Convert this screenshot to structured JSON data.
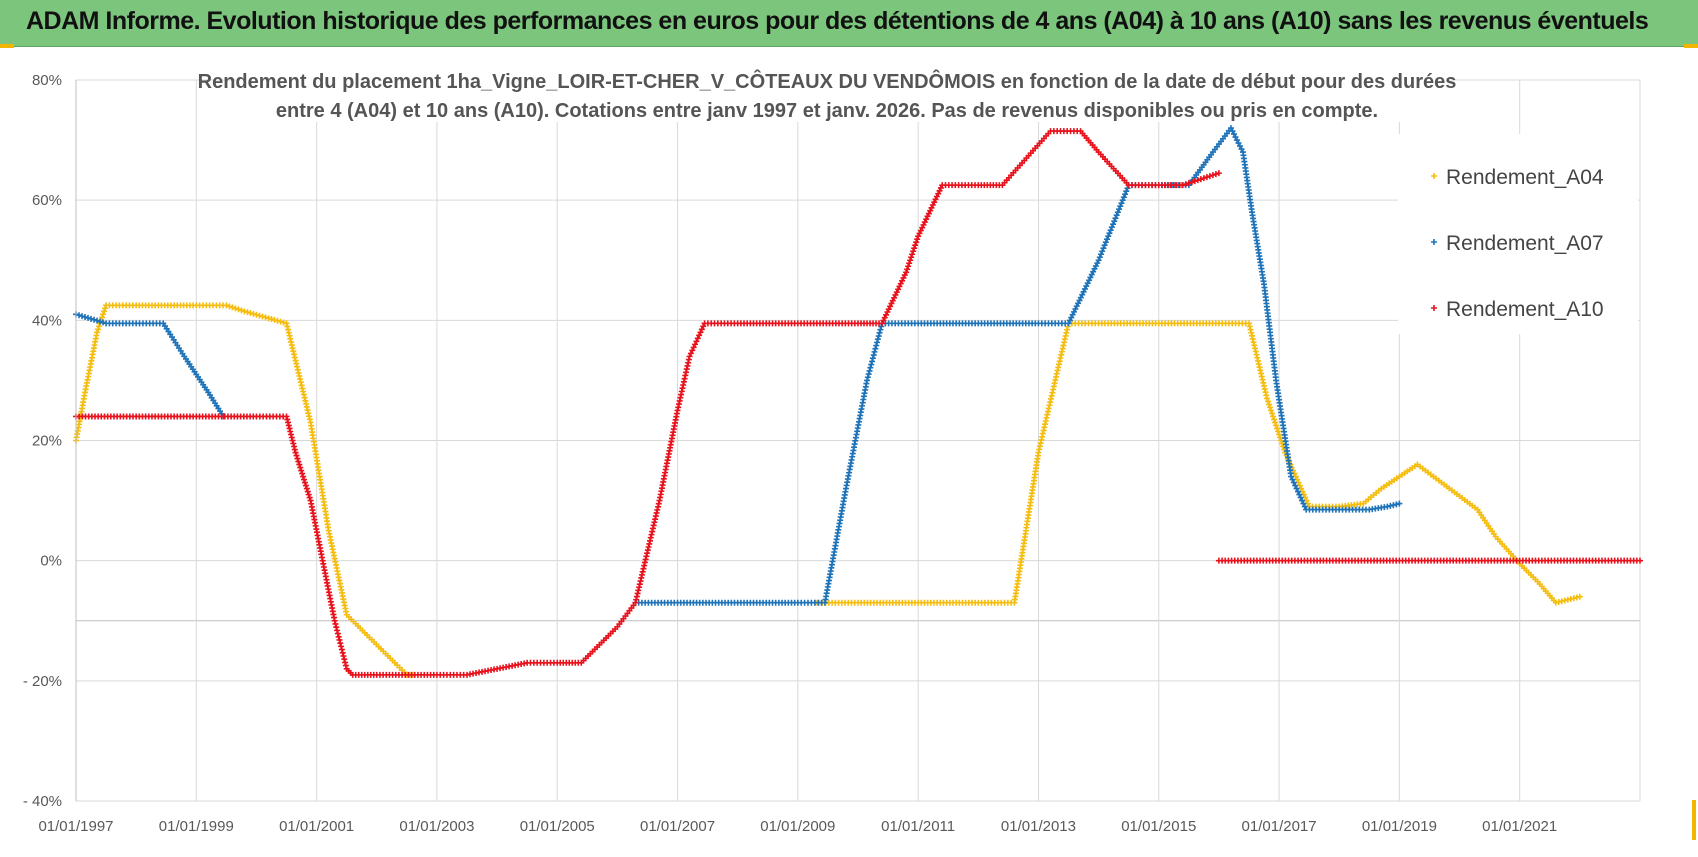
{
  "banner": {
    "title": "ADAM Informe. Evolution historique des performances en euros pour des détentions de 4 ans (A04) à 10 ans (A10) sans les revenus éventuels",
    "background": "#7cc57d",
    "accent": "#f2b600"
  },
  "chart_data": {
    "type": "scatter",
    "title_lines": [
      "Rendement du placement 1ha_Vigne_LOIR-ET-CHER_V_CÔTEAUX DU VENDÔMOIS en fonction de la date de début pour des durées",
      "entre 4 (A04) et 10 ans (A10).  Cotations entre janv 1997 et janv. 2026. Pas de revenus disponibles ou pris en compte."
    ],
    "marker": "+",
    "x_unit": "year",
    "xlim": [
      1997.0,
      2023.0
    ],
    "ylim": [
      -40,
      80
    ],
    "y_ticks": [
      80,
      60,
      40,
      20,
      0,
      -20,
      -40
    ],
    "y_tick_labels": [
      "80%",
      "60%",
      "40%",
      "20%",
      "0%",
      "- 20%",
      "- 40%"
    ],
    "x_tick_values": [
      1997,
      1999,
      2001,
      2003,
      2005,
      2007,
      2009,
      2011,
      2013,
      2015,
      2017,
      2019,
      2021
    ],
    "x_tick_labels": [
      "01/01/1997",
      "01/01/1999",
      "01/01/2001",
      "01/01/2003",
      "01/01/2005",
      "01/01/2007",
      "01/01/2009",
      "01/01/2011",
      "01/01/2013",
      "01/01/2015",
      "01/01/2017",
      "01/01/2019",
      "01/01/2021"
    ],
    "grid": true,
    "legend_position": "top-right",
    "series": [
      {
        "name": "Rendement_A04",
        "color": "#f5bd10",
        "points": [
          [
            1997.0,
            20
          ],
          [
            1997.15,
            28
          ],
          [
            1997.35,
            38
          ],
          [
            1997.5,
            42.5
          ],
          [
            1998.0,
            42.5
          ],
          [
            1999.0,
            42.5
          ],
          [
            1999.5,
            42.5
          ],
          [
            1999.8,
            41.5
          ],
          [
            2000.5,
            39.5
          ],
          [
            2000.9,
            23
          ],
          [
            2001.2,
            5
          ],
          [
            2001.5,
            -9
          ],
          [
            2001.8,
            -12
          ],
          [
            2002.3,
            -17
          ],
          [
            2002.5,
            -19
          ],
          [
            2002.6,
            -19
          ]
        ]
      },
      {
        "name": "Rendement_A04",
        "color": "#f5bd10",
        "points": [
          [
            2009.3,
            -7
          ],
          [
            2010.0,
            -7
          ],
          [
            2011.0,
            -7
          ],
          [
            2012.0,
            -7
          ],
          [
            2012.6,
            -7
          ],
          [
            2013.0,
            18
          ],
          [
            2013.5,
            39.5
          ],
          [
            2014.0,
            39.5
          ],
          [
            2015.0,
            39.5
          ],
          [
            2016.0,
            39.5
          ],
          [
            2016.5,
            39.5
          ],
          [
            2016.8,
            27
          ],
          [
            2017.1,
            18
          ],
          [
            2017.5,
            9
          ],
          [
            2018.0,
            9
          ],
          [
            2018.4,
            9.5
          ],
          [
            2018.7,
            12
          ],
          [
            2019.0,
            14
          ],
          [
            2019.3,
            16
          ],
          [
            2019.7,
            13
          ],
          [
            2020.3,
            8.5
          ],
          [
            2020.6,
            4
          ],
          [
            2021.0,
            -0.5
          ],
          [
            2021.3,
            -3.5
          ],
          [
            2021.6,
            -7
          ],
          [
            2022.0,
            -6
          ]
        ]
      },
      {
        "name": "Rendement_A07",
        "color": "#1f73b8",
        "points": [
          [
            1997.0,
            41
          ],
          [
            1997.5,
            39.5
          ],
          [
            1998.0,
            39.5
          ],
          [
            1998.45,
            39.5
          ],
          [
            1998.8,
            34
          ],
          [
            1999.2,
            28
          ],
          [
            1999.45,
            24
          ]
        ]
      },
      {
        "name": "Rendement_A07",
        "color": "#1f73b8",
        "points": [
          [
            2006.3,
            -7
          ],
          [
            2007.0,
            -7
          ],
          [
            2008.0,
            -7
          ],
          [
            2009.0,
            -7
          ],
          [
            2009.45,
            -7
          ],
          [
            2009.8,
            12
          ],
          [
            2010.15,
            30
          ],
          [
            2010.4,
            39.5
          ],
          [
            2011.0,
            39.5
          ],
          [
            2012.0,
            39.5
          ],
          [
            2013.0,
            39.5
          ],
          [
            2013.5,
            39.5
          ],
          [
            2014.0,
            50
          ],
          [
            2014.5,
            62.5
          ],
          [
            2015.0,
            62.5
          ],
          [
            2015.5,
            62.5
          ],
          [
            2015.9,
            68
          ],
          [
            2016.2,
            72
          ],
          [
            2016.4,
            68
          ],
          [
            2016.55,
            58
          ],
          [
            2016.75,
            46
          ],
          [
            2016.95,
            30
          ],
          [
            2017.2,
            14
          ],
          [
            2017.45,
            8.5
          ],
          [
            2018.0,
            8.5
          ],
          [
            2018.5,
            8.5
          ],
          [
            2018.8,
            9
          ],
          [
            2019.0,
            9.5
          ]
        ]
      },
      {
        "name": "Rendement_A10",
        "color": "#e8121d",
        "points": [
          [
            1997.0,
            24
          ],
          [
            1998.0,
            24
          ],
          [
            1999.0,
            24
          ],
          [
            2000.0,
            24
          ],
          [
            2000.5,
            24
          ],
          [
            2000.65,
            18
          ],
          [
            2000.9,
            10
          ],
          [
            2001.1,
            0
          ],
          [
            2001.3,
            -10
          ],
          [
            2001.5,
            -18
          ],
          [
            2001.6,
            -19
          ],
          [
            2002.0,
            -19
          ],
          [
            2003.0,
            -19
          ],
          [
            2003.5,
            -19
          ],
          [
            2004.0,
            -18
          ],
          [
            2004.5,
            -17
          ],
          [
            2005.0,
            -17
          ],
          [
            2005.4,
            -17
          ],
          [
            2006.0,
            -11
          ],
          [
            2006.3,
            -7
          ],
          [
            2006.7,
            10
          ],
          [
            2007.0,
            25
          ],
          [
            2007.2,
            34
          ],
          [
            2007.45,
            39.5
          ],
          [
            2008.0,
            39.5
          ],
          [
            2009.0,
            39.5
          ],
          [
            2010.0,
            39.5
          ],
          [
            2010.4,
            39.5
          ],
          [
            2010.8,
            48
          ],
          [
            2011.0,
            54
          ],
          [
            2011.4,
            62.5
          ],
          [
            2012.0,
            62.5
          ],
          [
            2012.4,
            62.5
          ],
          [
            2012.8,
            67
          ],
          [
            2013.2,
            71.5
          ],
          [
            2013.7,
            71.5
          ],
          [
            2014.0,
            68
          ],
          [
            2014.5,
            62.5
          ],
          [
            2015.0,
            62.5
          ],
          [
            2015.4,
            62.5
          ],
          [
            2015.7,
            63.5
          ],
          [
            2016.0,
            64.5
          ]
        ]
      },
      {
        "name": "Rendement_A10",
        "color": "#e8121d",
        "points": [
          [
            2016.0,
            0
          ],
          [
            2017.0,
            0
          ],
          [
            2018.0,
            0
          ],
          [
            2019.0,
            0
          ],
          [
            2020.0,
            0
          ],
          [
            2021.0,
            0
          ],
          [
            2022.0,
            0
          ],
          [
            2023.0,
            0
          ]
        ]
      }
    ],
    "legend": [
      {
        "name": "Rendement_A04",
        "color": "#f5bd10"
      },
      {
        "name": "Rendement_A07",
        "color": "#1f73b8"
      },
      {
        "name": "Rendement_A10",
        "color": "#e8121d"
      }
    ]
  }
}
